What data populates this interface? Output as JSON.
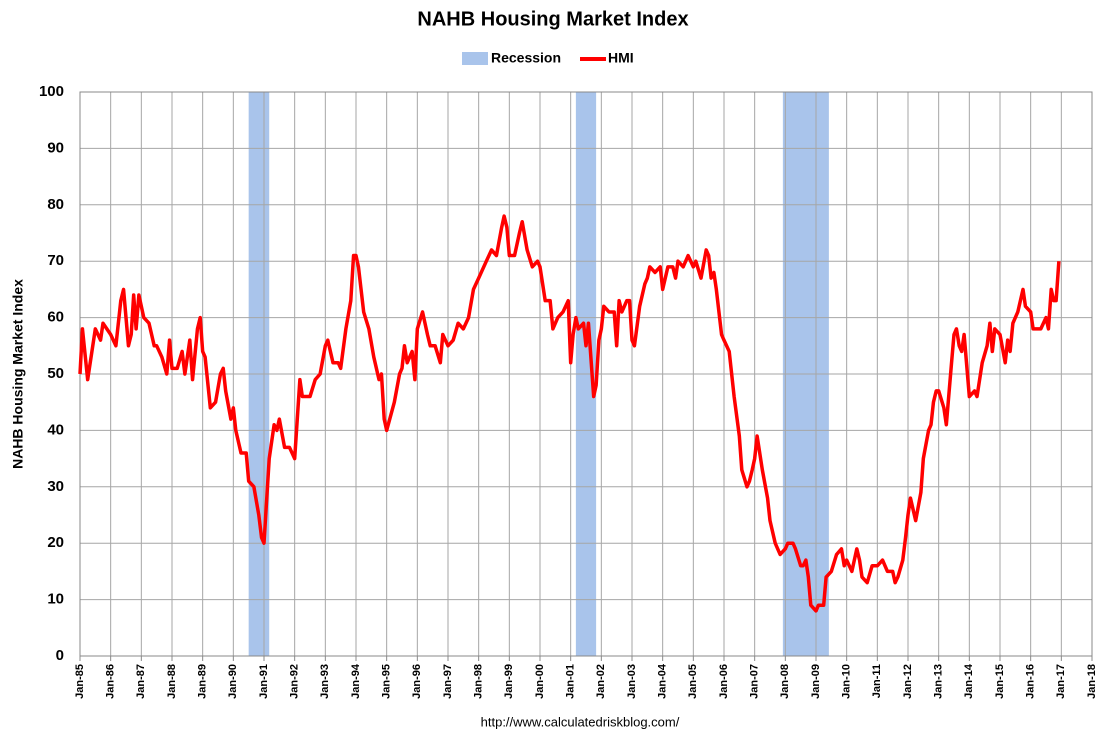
{
  "chart_data": {
    "type": "line",
    "title": "NAHB Housing Market Index",
    "y_label": "NAHB Housing Market Index",
    "source": "http://www.calculatedriskblog.com/",
    "grid": true,
    "legend": "top",
    "xlim": [
      1985,
      2018
    ],
    "ylim": [
      0,
      100
    ],
    "yticks": [
      0,
      10,
      20,
      30,
      40,
      50,
      60,
      70,
      80,
      90,
      100
    ],
    "xticks": [
      {
        "value": 1985,
        "label": "Jan-85"
      },
      {
        "value": 1986,
        "label": "Jan-86"
      },
      {
        "value": 1987,
        "label": "Jan-87"
      },
      {
        "value": 1988,
        "label": "Jan-88"
      },
      {
        "value": 1989,
        "label": "Jan-89"
      },
      {
        "value": 1990,
        "label": "Jan-90"
      },
      {
        "value": 1991,
        "label": "Jan-91"
      },
      {
        "value": 1992,
        "label": "Jan-92"
      },
      {
        "value": 1993,
        "label": "Jan-93"
      },
      {
        "value": 1994,
        "label": "Jan-94"
      },
      {
        "value": 1995,
        "label": "Jan-95"
      },
      {
        "value": 1996,
        "label": "Jan-96"
      },
      {
        "value": 1997,
        "label": "Jan-97"
      },
      {
        "value": 1998,
        "label": "Jan-98"
      },
      {
        "value": 1999,
        "label": "Jan-99"
      },
      {
        "value": 2000,
        "label": "Jan-00"
      },
      {
        "value": 2001,
        "label": "Jan-01"
      },
      {
        "value": 2002,
        "label": "Jan-02"
      },
      {
        "value": 2003,
        "label": "Jan-03"
      },
      {
        "value": 2004,
        "label": "Jan-04"
      },
      {
        "value": 2005,
        "label": "Jan-05"
      },
      {
        "value": 2006,
        "label": "Jan-06"
      },
      {
        "value": 2007,
        "label": "Jan-07"
      },
      {
        "value": 2008,
        "label": "Jan-08"
      },
      {
        "value": 2009,
        "label": "Jan-09"
      },
      {
        "value": 2010,
        "label": "Jan-10"
      },
      {
        "value": 2011,
        "label": "Jan-11"
      },
      {
        "value": 2012,
        "label": "Jan-12"
      },
      {
        "value": 2013,
        "label": "Jan-13"
      },
      {
        "value": 2014,
        "label": "Jan-14"
      },
      {
        "value": 2015,
        "label": "Jan-15"
      },
      {
        "value": 2016,
        "label": "Jan-16"
      },
      {
        "value": 2017,
        "label": "Jan-17"
      },
      {
        "value": 2018,
        "label": "Jan-18"
      }
    ],
    "recession": {
      "name": "Recession",
      "color": "#a9c4eb",
      "periods": [
        [
          1990.5,
          1991.17
        ],
        [
          2001.17,
          2001.83
        ],
        [
          2007.92,
          2009.42
        ]
      ]
    },
    "x": [
      1985.0,
      1985.08,
      1985.25,
      1985.5,
      1985.67,
      1985.75,
      1986.0,
      1986.17,
      1986.33,
      1986.42,
      1986.58,
      1986.67,
      1986.75,
      1986.83,
      1986.92,
      1987.08,
      1987.25,
      1987.42,
      1987.5,
      1987.67,
      1987.83,
      1987.92,
      1988.0,
      1988.17,
      1988.33,
      1988.42,
      1988.58,
      1988.67,
      1988.83,
      1988.92,
      1989.0,
      1989.08,
      1989.25,
      1989.42,
      1989.58,
      1989.67,
      1989.75,
      1989.92,
      1990.0,
      1990.08,
      1990.25,
      1990.42,
      1990.5,
      1990.67,
      1990.83,
      1990.92,
      1991.0,
      1991.17,
      1991.33,
      1991.42,
      1991.5,
      1991.67,
      1991.83,
      1992.0,
      1992.17,
      1992.25,
      1992.5,
      1992.67,
      1992.83,
      1993.0,
      1993.08,
      1993.25,
      1993.42,
      1993.5,
      1993.67,
      1993.83,
      1993.92,
      1994.0,
      1994.08,
      1994.25,
      1994.42,
      1994.58,
      1994.75,
      1994.83,
      1994.92,
      1995.0,
      1995.25,
      1995.42,
      1995.5,
      1995.58,
      1995.67,
      1995.83,
      1995.92,
      1996.0,
      1996.17,
      1996.33,
      1996.42,
      1996.58,
      1996.75,
      1996.83,
      1997.0,
      1997.17,
      1997.33,
      1997.5,
      1997.67,
      1997.83,
      1998.0,
      1998.25,
      1998.42,
      1998.58,
      1998.75,
      1998.83,
      1998.92,
      1999.0,
      1999.17,
      1999.33,
      1999.42,
      1999.58,
      1999.75,
      1999.92,
      2000.0,
      2000.17,
      2000.33,
      2000.42,
      2000.58,
      2000.75,
      2000.92,
      2001.0,
      2001.08,
      2001.17,
      2001.25,
      2001.42,
      2001.5,
      2001.58,
      2001.75,
      2001.83,
      2001.92,
      2002.0,
      2002.08,
      2002.25,
      2002.42,
      2002.5,
      2002.58,
      2002.67,
      2002.83,
      2002.92,
      2003.0,
      2003.08,
      2003.25,
      2003.42,
      2003.5,
      2003.58,
      2003.75,
      2003.92,
      2004.0,
      2004.17,
      2004.33,
      2004.42,
      2004.5,
      2004.67,
      2004.83,
      2005.0,
      2005.08,
      2005.25,
      2005.42,
      2005.5,
      2005.58,
      2005.67,
      2005.75,
      2005.92,
      2006.0,
      2006.17,
      2006.33,
      2006.5,
      2006.58,
      2006.75,
      2006.83,
      2006.92,
      2007.0,
      2007.08,
      2007.25,
      2007.42,
      2007.5,
      2007.67,
      2007.83,
      2008.0,
      2008.08,
      2008.25,
      2008.33,
      2008.5,
      2008.58,
      2008.67,
      2008.75,
      2008.83,
      2009.0,
      2009.08,
      2009.25,
      2009.33,
      2009.5,
      2009.67,
      2009.83,
      2009.92,
      2010.0,
      2010.17,
      2010.33,
      2010.42,
      2010.5,
      2010.67,
      2010.83,
      2010.92,
      2011.0,
      2011.17,
      2011.33,
      2011.5,
      2011.58,
      2011.67,
      2011.83,
      2011.92,
      2012.0,
      2012.08,
      2012.25,
      2012.42,
      2012.5,
      2012.67,
      2012.75,
      2012.83,
      2012.92,
      2013.0,
      2013.17,
      2013.25,
      2013.42,
      2013.5,
      2013.58,
      2013.67,
      2013.75,
      2013.83,
      2014.0,
      2014.17,
      2014.25,
      2014.42,
      2014.58,
      2014.67,
      2014.75,
      2014.83,
      2015.0,
      2015.17,
      2015.25,
      2015.33,
      2015.42,
      2015.58,
      2015.75,
      2015.83,
      2016.0,
      2016.08,
      2016.33,
      2016.5,
      2016.58,
      2016.67,
      2016.75,
      2016.83,
      2016.92
    ],
    "series": [
      {
        "name": "HMI",
        "color": "#ff0000",
        "values": [
          50,
          58,
          49,
          58,
          56,
          59,
          57,
          55,
          63,
          65,
          55,
          57,
          64,
          58,
          64,
          60,
          59,
          55,
          55,
          53,
          50,
          56,
          51,
          51,
          54,
          50,
          56,
          49,
          58,
          60,
          54,
          53,
          44,
          45,
          50,
          51,
          47,
          42,
          44,
          40,
          36,
          36,
          31,
          30,
          25,
          21,
          20,
          35,
          41,
          40,
          42,
          37,
          37,
          35,
          49,
          46,
          46,
          49,
          50,
          55,
          56,
          52,
          52,
          51,
          58,
          63,
          71,
          71,
          69,
          61,
          58,
          53,
          49,
          50,
          42,
          40,
          45,
          50,
          51,
          55,
          52,
          54,
          49,
          58,
          61,
          57,
          55,
          55,
          52,
          57,
          55,
          56,
          59,
          58,
          60,
          65,
          67,
          70,
          72,
          71,
          76,
          78,
          76,
          71,
          71,
          75,
          77,
          72,
          69,
          70,
          69,
          63,
          63,
          58,
          60,
          61,
          63,
          52,
          57,
          60,
          58,
          59,
          55,
          59,
          46,
          48,
          56,
          58,
          62,
          61,
          61,
          55,
          63,
          61,
          63,
          63,
          56,
          55,
          62,
          66,
          67,
          69,
          68,
          69,
          65,
          69,
          69,
          67,
          70,
          69,
          71,
          69,
          70,
          67,
          72,
          71,
          67,
          68,
          65,
          57,
          56,
          54,
          46,
          39,
          33,
          30,
          31,
          33,
          35,
          39,
          33,
          28,
          24,
          20,
          18,
          19,
          20,
          20,
          19,
          16,
          16,
          17,
          14,
          9,
          8,
          9,
          9,
          14,
          15,
          18,
          19,
          16,
          17,
          15,
          19,
          17,
          14,
          13,
          16,
          16,
          16,
          17,
          15,
          15,
          13,
          14,
          17,
          21,
          25,
          28,
          24,
          29,
          35,
          40,
          41,
          45,
          47,
          47,
          44,
          41,
          52,
          57,
          58,
          55,
          54,
          57,
          46,
          47,
          46,
          52,
          55,
          59,
          54,
          58,
          57,
          52,
          56,
          54,
          59,
          61,
          65,
          62,
          61,
          58,
          58,
          60,
          58,
          65,
          63,
          63,
          70
        ]
      }
    ]
  }
}
